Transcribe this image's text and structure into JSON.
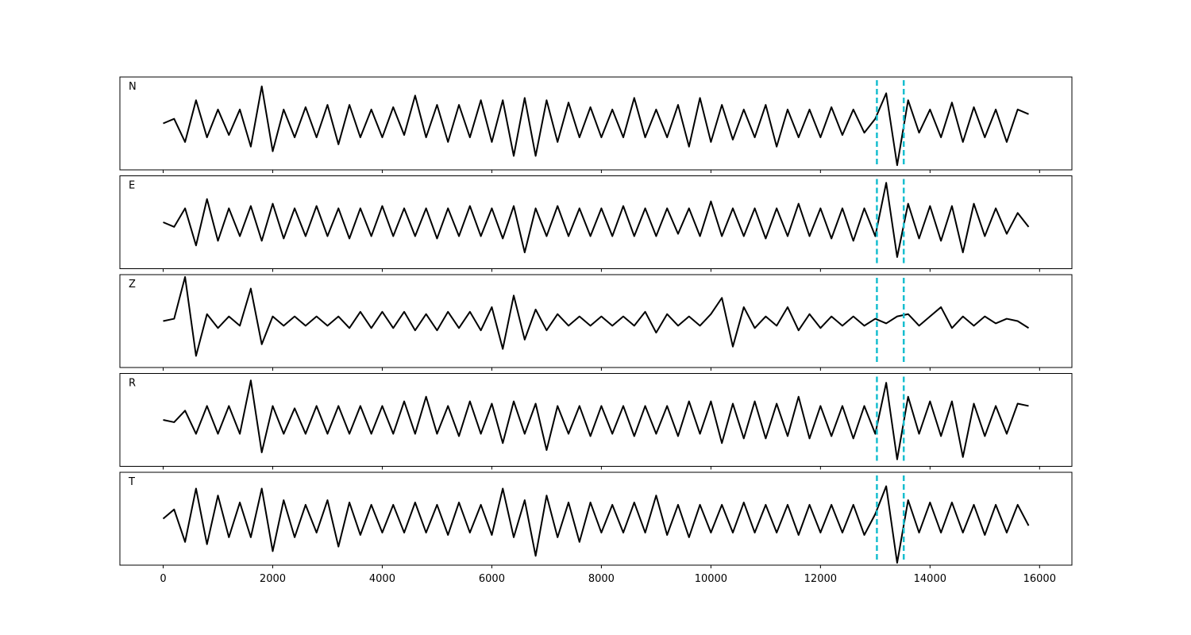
{
  "chart_data": {
    "type": "line",
    "subplots": true,
    "color": "#000000",
    "xlim": [
      -790,
      16590
    ],
    "ylim": [
      -1,
      1
    ],
    "xticks": [
      0,
      2000,
      4000,
      6000,
      8000,
      10000,
      12000,
      14000,
      16000
    ],
    "vlines": [
      13030,
      13520
    ],
    "vline_color": "#17becf",
    "vline_style": "dashed",
    "x": [
      0,
      200,
      400,
      600,
      800,
      1000,
      1200,
      1400,
      1600,
      1800,
      2000,
      2200,
      2400,
      2600,
      2800,
      3000,
      3200,
      3400,
      3600,
      3800,
      4000,
      4200,
      4400,
      4600,
      4800,
      5000,
      5200,
      5400,
      5600,
      5800,
      6000,
      6200,
      6400,
      6600,
      6800,
      7000,
      7200,
      7400,
      7600,
      7800,
      8000,
      8200,
      8400,
      8600,
      8800,
      9000,
      9200,
      9400,
      9600,
      9800,
      10000,
      10200,
      10400,
      10600,
      10800,
      11000,
      11200,
      11400,
      11600,
      11800,
      12000,
      12200,
      12400,
      12600,
      12800,
      13000,
      13200,
      13400,
      13600,
      13800,
      14000,
      14200,
      14400,
      14600,
      14800,
      15000,
      15200,
      15400,
      15600,
      15800
    ],
    "series": [
      {
        "name": "N",
        "values": [
          0.0,
          0.1,
          -0.4,
          0.5,
          -0.3,
          0.3,
          -0.25,
          0.3,
          -0.5,
          0.8,
          -0.6,
          0.3,
          -0.3,
          0.35,
          -0.3,
          0.4,
          -0.45,
          0.4,
          -0.3,
          0.3,
          -0.3,
          0.35,
          -0.25,
          0.6,
          -0.3,
          0.4,
          -0.4,
          0.4,
          -0.3,
          0.5,
          -0.4,
          0.5,
          -0.7,
          0.55,
          -0.7,
          0.5,
          -0.4,
          0.45,
          -0.3,
          0.35,
          -0.3,
          0.3,
          -0.3,
          0.55,
          -0.3,
          0.3,
          -0.3,
          0.4,
          -0.5,
          0.55,
          -0.4,
          0.4,
          -0.35,
          0.3,
          -0.3,
          0.4,
          -0.5,
          0.3,
          -0.3,
          0.3,
          -0.3,
          0.35,
          -0.25,
          0.3,
          -0.2,
          0.1,
          0.65,
          -0.9,
          0.5,
          -0.2,
          0.3,
          -0.3,
          0.45,
          -0.4,
          0.35,
          -0.3,
          0.3,
          -0.4,
          0.3,
          0.2
        ]
      },
      {
        "name": "E",
        "values": [
          0.0,
          -0.1,
          0.3,
          -0.5,
          0.5,
          -0.4,
          0.3,
          -0.3,
          0.35,
          -0.4,
          0.4,
          -0.35,
          0.3,
          -0.3,
          0.35,
          -0.3,
          0.3,
          -0.35,
          0.3,
          -0.3,
          0.35,
          -0.3,
          0.3,
          -0.3,
          0.3,
          -0.35,
          0.3,
          -0.3,
          0.35,
          -0.3,
          0.3,
          -0.35,
          0.35,
          -0.65,
          0.3,
          -0.3,
          0.35,
          -0.3,
          0.3,
          -0.3,
          0.3,
          -0.3,
          0.35,
          -0.3,
          0.3,
          -0.3,
          0.3,
          -0.25,
          0.3,
          -0.3,
          0.45,
          -0.3,
          0.3,
          -0.3,
          0.3,
          -0.35,
          0.3,
          -0.3,
          0.4,
          -0.3,
          0.3,
          -0.35,
          0.3,
          -0.4,
          0.3,
          -0.3,
          0.85,
          -0.75,
          0.4,
          -0.35,
          0.35,
          -0.4,
          0.35,
          -0.65,
          0.4,
          -0.3,
          0.3,
          -0.25,
          0.2,
          -0.1
        ]
      },
      {
        "name": "Z",
        "values": [
          0.0,
          0.05,
          0.95,
          -0.75,
          0.15,
          -0.15,
          0.1,
          -0.1,
          0.7,
          -0.5,
          0.1,
          -0.1,
          0.1,
          -0.1,
          0.1,
          -0.1,
          0.1,
          -0.15,
          0.2,
          -0.15,
          0.2,
          -0.15,
          0.2,
          -0.2,
          0.15,
          -0.2,
          0.2,
          -0.15,
          0.2,
          -0.2,
          0.3,
          -0.6,
          0.55,
          -0.4,
          0.25,
          -0.2,
          0.15,
          -0.1,
          0.1,
          -0.1,
          0.1,
          -0.1,
          0.1,
          -0.1,
          0.2,
          -0.25,
          0.15,
          -0.1,
          0.1,
          -0.1,
          0.15,
          0.5,
          -0.55,
          0.3,
          -0.15,
          0.1,
          -0.1,
          0.3,
          -0.2,
          0.15,
          -0.15,
          0.1,
          -0.1,
          0.1,
          -0.1,
          0.05,
          -0.05,
          0.1,
          0.15,
          -0.1,
          0.1,
          0.3,
          -0.15,
          0.1,
          -0.1,
          0.1,
          -0.05,
          0.05,
          0.0,
          -0.15
        ]
      },
      {
        "name": "R",
        "values": [
          0.0,
          -0.05,
          0.2,
          -0.3,
          0.3,
          -0.3,
          0.3,
          -0.3,
          0.85,
          -0.7,
          0.3,
          -0.3,
          0.25,
          -0.3,
          0.3,
          -0.3,
          0.3,
          -0.3,
          0.3,
          -0.3,
          0.3,
          -0.3,
          0.4,
          -0.3,
          0.5,
          -0.3,
          0.3,
          -0.35,
          0.4,
          -0.3,
          0.35,
          -0.5,
          0.4,
          -0.3,
          0.35,
          -0.65,
          0.3,
          -0.3,
          0.3,
          -0.35,
          0.3,
          -0.3,
          0.3,
          -0.35,
          0.3,
          -0.3,
          0.3,
          -0.35,
          0.4,
          -0.3,
          0.4,
          -0.5,
          0.35,
          -0.4,
          0.4,
          -0.4,
          0.35,
          -0.35,
          0.5,
          -0.4,
          0.3,
          -0.35,
          0.3,
          -0.4,
          0.3,
          -0.3,
          0.8,
          -0.85,
          0.5,
          -0.3,
          0.4,
          -0.35,
          0.4,
          -0.8,
          0.35,
          -0.35,
          0.3,
          -0.3,
          0.35,
          0.3
        ]
      },
      {
        "name": "T",
        "values": [
          0.0,
          0.2,
          -0.5,
          0.65,
          -0.55,
          0.5,
          -0.4,
          0.35,
          -0.4,
          0.65,
          -0.7,
          0.4,
          -0.4,
          0.3,
          -0.3,
          0.4,
          -0.6,
          0.35,
          -0.35,
          0.3,
          -0.3,
          0.3,
          -0.3,
          0.35,
          -0.3,
          0.3,
          -0.35,
          0.35,
          -0.3,
          0.3,
          -0.35,
          0.65,
          -0.4,
          0.4,
          -0.8,
          0.5,
          -0.4,
          0.35,
          -0.5,
          0.35,
          -0.3,
          0.3,
          -0.3,
          0.35,
          -0.3,
          0.5,
          -0.35,
          0.3,
          -0.4,
          0.3,
          -0.3,
          0.3,
          -0.3,
          0.35,
          -0.3,
          0.3,
          -0.3,
          0.3,
          -0.35,
          0.3,
          -0.3,
          0.3,
          -0.3,
          0.3,
          -0.35,
          0.1,
          0.7,
          -0.95,
          0.4,
          -0.3,
          0.35,
          -0.3,
          0.35,
          -0.3,
          0.3,
          -0.35,
          0.3,
          -0.3,
          0.3,
          -0.15
        ]
      }
    ]
  }
}
